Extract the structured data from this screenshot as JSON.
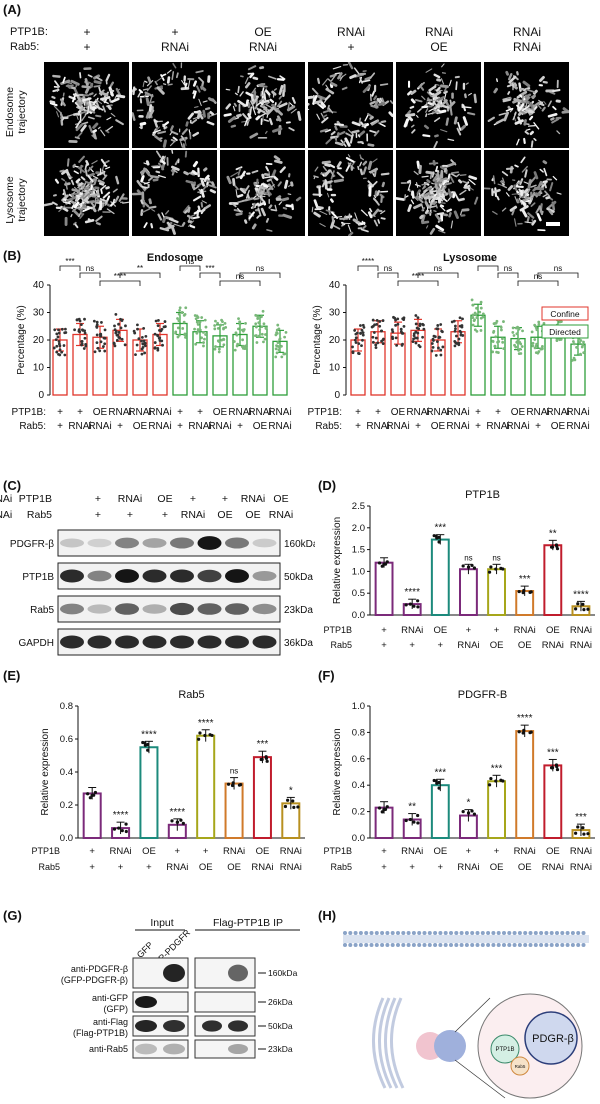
{
  "panelA": {
    "label": "(A)",
    "row_labels": [
      "PTP1B:",
      "Rab5:"
    ],
    "cols": [
      [
        "+",
        "+"
      ],
      [
        "+",
        "RNAi"
      ],
      [
        "OE",
        "RNAi"
      ],
      [
        "RNAi",
        "+"
      ],
      [
        "RNAi",
        "OE"
      ],
      [
        "RNAi",
        "RNAi"
      ]
    ],
    "row_titles": [
      [
        "Endosome",
        "trajectory"
      ],
      [
        "Lysosome",
        "trajectory"
      ]
    ]
  },
  "panelB": {
    "label": "(B)",
    "legend": {
      "confine": "Confine",
      "directed": "Directed",
      "confine_color": "#e0352b",
      "directed_color": "#2e9e3a"
    },
    "endosome": {
      "title": "Endosome",
      "ylabel": "Percentage (%)",
      "yticks": [
        "0",
        "10",
        "20",
        "30",
        "40"
      ],
      "values": [
        20,
        22,
        21,
        23.5,
        20,
        22,
        26,
        23,
        21.5,
        22,
        25,
        19.5
      ],
      "sig": [
        "***",
        "ns",
        "****",
        "**",
        "ns",
        "***",
        "ns",
        "ns"
      ]
    },
    "lysosome": {
      "title": "Lysosome",
      "ylabel": "Percentage (%)",
      "yticks": [
        "0",
        "10",
        "20",
        "30",
        "40"
      ],
      "values": [
        20,
        23,
        22.5,
        23.5,
        20,
        23,
        29,
        21,
        20.5,
        21,
        25,
        18.5
      ],
      "sig": [
        "****",
        "ns",
        "****",
        "ns",
        "****",
        "ns",
        "ns",
        "ns"
      ]
    },
    "xrow1": [
      "PTP1B:",
      "+",
      "+",
      "OE",
      "RNAi",
      "RNAi",
      "RNAi",
      "+",
      "+",
      "OE",
      "RNAi",
      "RNAi",
      "RNAi"
    ],
    "xrow2": [
      "Rab5:",
      "+",
      "RNAi",
      "RNAi",
      "+",
      "OE",
      "RNAi",
      "+",
      "RNAi",
      "RNAi",
      "+",
      "OE",
      "RNAi"
    ]
  },
  "panelC": {
    "label": "(C)",
    "ptp1b_row": [
      "PTP1B",
      "+",
      "RNAi",
      "OE",
      "+",
      "+",
      "RNAi",
      "OE",
      "RNAi"
    ],
    "rab5_row": [
      "Rab5",
      "+",
      "+",
      "+",
      "RNAi",
      "OE",
      "OE",
      "RNAi",
      "RNAi"
    ],
    "bands": [
      {
        "name": "PDGFR-β",
        "kda": "160kDa",
        "intensity": [
          0.15,
          0.1,
          0.45,
          0.3,
          0.5,
          0.95,
          0.5,
          0.12
        ]
      },
      {
        "name": "PTP1B",
        "kda": "50kDa",
        "intensity": [
          0.85,
          0.45,
          0.95,
          0.85,
          0.85,
          0.75,
          0.95,
          0.35
        ]
      },
      {
        "name": "Rab5",
        "kda": "23kDa",
        "intensity": [
          0.45,
          0.2,
          0.6,
          0.25,
          0.7,
          0.6,
          0.6,
          0.4
        ]
      },
      {
        "name": "GAPDH",
        "kda": "36kDa",
        "intensity": [
          0.85,
          0.85,
          0.85,
          0.85,
          0.85,
          0.85,
          0.85,
          0.85
        ]
      }
    ]
  },
  "panelD": {
    "label": "(D)",
    "title": "PTP1B",
    "ylabel": "Relative expression",
    "yticks": [
      "0.0",
      "0.5",
      "1.0",
      "1.5",
      "2.0",
      "2.5"
    ],
    "ymax": 2.5,
    "values": [
      1.2,
      0.25,
      1.73,
      1.05,
      1.05,
      0.55,
      1.6,
      0.2
    ],
    "sig": [
      "",
      "****",
      "***",
      "ns",
      "ns",
      "***",
      "**",
      "****"
    ],
    "x1": [
      "PTP1B",
      "+",
      "RNAi",
      "OE",
      "+",
      "+",
      "RNAi",
      "OE",
      "RNAi"
    ],
    "x2": [
      "Rab5",
      "+",
      "+",
      "+",
      "RNAi",
      "OE",
      "OE",
      "RNAi",
      "RNAi"
    ]
  },
  "panelE": {
    "label": "(E)",
    "title": "Rab5",
    "ylabel": "Relative expression",
    "yticks": [
      "0.0",
      "0.2",
      "0.4",
      "0.6",
      "0.8"
    ],
    "ymax": 0.8,
    "values": [
      0.27,
      0.06,
      0.55,
      0.08,
      0.62,
      0.33,
      0.49,
      0.21
    ],
    "sig": [
      "",
      "****",
      "****",
      "****",
      "****",
      "ns",
      "***",
      "*"
    ],
    "x1": [
      "PTP1B",
      "+",
      "RNAi",
      "OE",
      "+",
      "+",
      "RNAi",
      "OE",
      "RNAi"
    ],
    "x2": [
      "Rab5",
      "+",
      "+",
      "+",
      "RNAi",
      "OE",
      "OE",
      "RNAi",
      "RNAi"
    ]
  },
  "panelF": {
    "label": "(F)",
    "title": "PDGFR-B",
    "ylabel": "Relative expression",
    "yticks": [
      "0.0",
      "0.2",
      "0.4",
      "0.6",
      "0.8",
      "1.0"
    ],
    "ymax": 1.0,
    "values": [
      0.23,
      0.14,
      0.4,
      0.17,
      0.43,
      0.81,
      0.55,
      0.06
    ],
    "sig": [
      "",
      "**",
      "***",
      "*",
      "***",
      "****",
      "***",
      "***"
    ],
    "x1": [
      "PTP1B",
      "+",
      "RNAi",
      "OE",
      "+",
      "+",
      "RNAi",
      "OE",
      "RNAi"
    ],
    "x2": [
      "Rab5",
      "+",
      "+",
      "+",
      "RNAi",
      "OE",
      "OE",
      "RNAi",
      "RNAi"
    ]
  },
  "bar_colors": [
    "#7b2a7a",
    "#7b2a7a",
    "#1c8a7c",
    "#7b2a7a",
    "#a6a61a",
    "#d07a2a",
    "#c01c2c",
    "#b89020"
  ],
  "panelG": {
    "label": "(G)",
    "input": "Input",
    "ip": "Flag-PTP1B IP",
    "lanes": [
      "GFP",
      "GFP-PDGFR"
    ],
    "rows": [
      {
        "name": "anti-PDGFR-β",
        "sub": "(GFP-PDGFR-β)",
        "kda": "160kDa"
      },
      {
        "name": "anti-GFP",
        "sub": "(GFP)",
        "kda": "26kDa"
      },
      {
        "name": "anti-Flag",
        "sub": "(Flag-PTP1B)",
        "kda": "50kDa"
      },
      {
        "name": "anti-Rab5",
        "sub": "",
        "kda": "23kDa"
      }
    ]
  },
  "panelH": {
    "label": "(H)",
    "ptp1b": "PTP1B",
    "pdgr": "PDGR-β",
    "rab5": "Rab5"
  }
}
